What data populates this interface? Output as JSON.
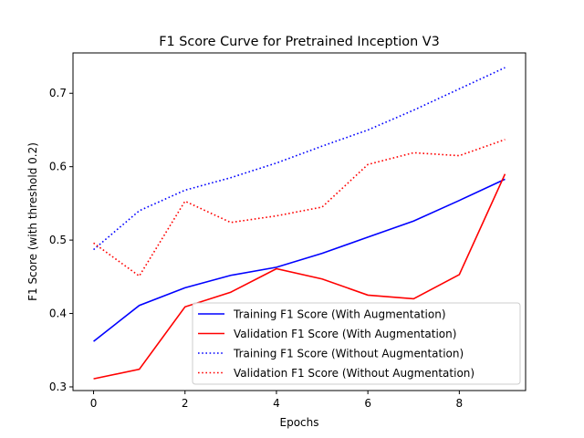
{
  "chart_data": {
    "type": "line",
    "title": "F1 Score Curve for Pretrained Inception V3",
    "xlabel": "Epochs",
    "ylabel": "F1 Score (with threshold 0.2)",
    "xlim": [
      -0.45,
      9.45
    ],
    "ylim": [
      0.295,
      0.755
    ],
    "xticks": [
      0,
      2,
      4,
      6,
      8
    ],
    "xtick_labels": [
      "0",
      "2",
      "4",
      "6",
      "8"
    ],
    "yticks": [
      0.3,
      0.4,
      0.5,
      0.6,
      0.7
    ],
    "ytick_labels": [
      "0.3",
      "0.4",
      "0.5",
      "0.6",
      "0.7"
    ],
    "grid": false,
    "legend_position": "lower right",
    "x": [
      0,
      1,
      2,
      3,
      4,
      5,
      6,
      7,
      8,
      9
    ],
    "series": [
      {
        "name": "Training F1 Score (With Augmentation)",
        "color": "#0000ff",
        "style": "solid",
        "values": [
          0.362,
          0.411,
          0.435,
          0.452,
          0.463,
          0.482,
          0.504,
          0.526,
          0.554,
          0.583
        ]
      },
      {
        "name": "Validation F1 Score (With Augmentation)",
        "color": "#ff0000",
        "style": "solid",
        "values": [
          0.311,
          0.324,
          0.409,
          0.429,
          0.461,
          0.447,
          0.425,
          0.42,
          0.453,
          0.59
        ]
      },
      {
        "name": "Training F1 Score (Without Augmentation)",
        "color": "#0000ff",
        "style": "dotted",
        "values": [
          0.487,
          0.54,
          0.568,
          0.585,
          0.605,
          0.628,
          0.65,
          0.677,
          0.706,
          0.735
        ]
      },
      {
        "name": "Validation F1 Score (Without Augmentation)",
        "color": "#ff0000",
        "style": "dotted",
        "values": [
          0.496,
          0.451,
          0.553,
          0.524,
          0.533,
          0.545,
          0.603,
          0.619,
          0.615,
          0.637
        ]
      }
    ]
  }
}
